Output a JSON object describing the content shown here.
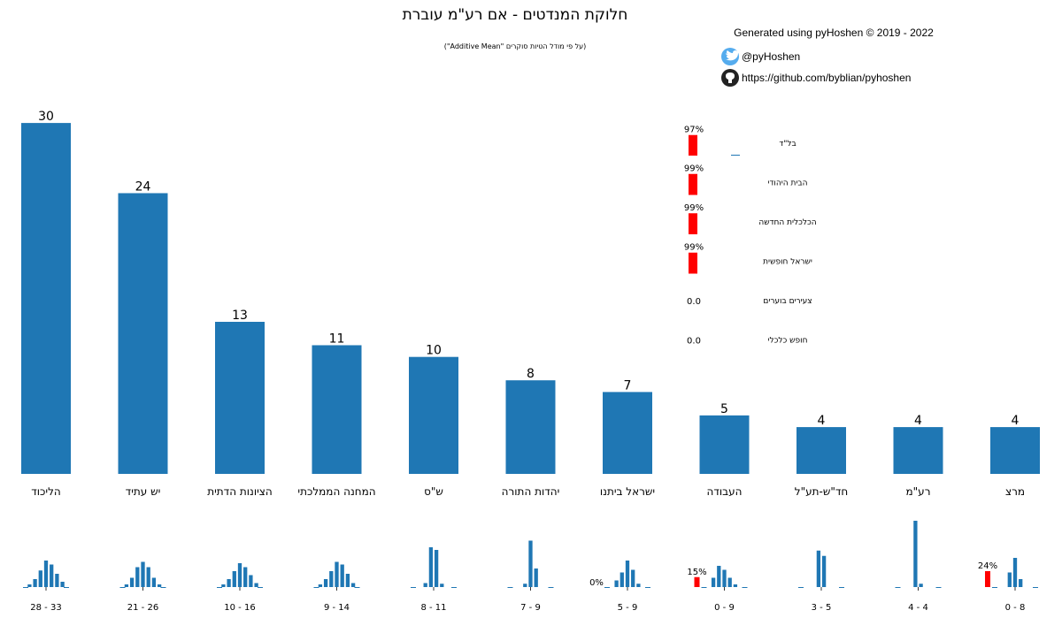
{
  "chart_data": {
    "type": "bar",
    "title": "חלוקת המנדטים - אם רע\"מ עוברת",
    "subtitle": "(על פי מודל הטיות סוקרים \"Additive Mean\")",
    "credit": {
      "generated": "Generated using pyHoshen © 2019 - 2022",
      "twitter": "@pyHoshen",
      "github": "https://github.com/byblian/pyhoshen"
    },
    "colors": {
      "bar": "#1f77b4",
      "threshold": "#ff0000"
    },
    "categories": [
      "הליכוד",
      "יש עתיד",
      "הציונות הדתית",
      "המחנה הממלכתי",
      "ש\"ס",
      "יהדות התורה",
      "ישראל ביתנו",
      "העבודה",
      "חד\"ש-תע\"ל",
      "רע\"מ",
      "מרצ"
    ],
    "values": [
      30,
      24,
      13,
      11,
      10,
      8,
      7,
      5,
      4,
      4,
      4
    ],
    "ranges": [
      "28 - 33",
      "21 - 26",
      "10 - 16",
      "9 - 14",
      "8 - 11",
      "7 - 9",
      "5 - 9",
      "0 - 9",
      "3 - 5",
      "4 - 4",
      "0 - 8"
    ],
    "below_threshold_pct": [
      "",
      "",
      "",
      "",
      "",
      "",
      "0%",
      "15%",
      "",
      "",
      "24%"
    ],
    "below_threshold_prob": [
      0,
      0,
      0,
      0,
      0,
      0,
      0,
      0.15,
      0,
      0,
      0.24
    ],
    "distributions": [
      [
        0.04,
        0.12,
        0.25,
        0.4,
        0.34,
        0.2,
        0.08
      ],
      [
        0.04,
        0.14,
        0.3,
        0.38,
        0.3,
        0.14,
        0.04
      ],
      [
        0.04,
        0.12,
        0.24,
        0.36,
        0.3,
        0.18,
        0.06
      ],
      [
        0.04,
        0.12,
        0.24,
        0.38,
        0.34,
        0.2,
        0.06
      ],
      [
        0.06,
        0.6,
        0.56,
        0.05
      ],
      [
        0.05,
        0.7,
        0.28
      ],
      [
        0.1,
        0.22,
        0.4,
        0.26,
        0.05
      ],
      [
        0.14,
        0.32,
        0.26,
        0.14,
        0.04
      ],
      [
        0.55,
        0.47
      ],
      [
        1.0,
        0.05
      ],
      [
        0.22,
        0.44,
        0.12
      ]
    ],
    "small_parties": [
      {
        "name": "בל\"ד",
        "pct": "97%",
        "prob_below": 0.97,
        "dash": true
      },
      {
        "name": "הבית היהודי",
        "pct": "99%",
        "prob_below": 0.99
      },
      {
        "name": "הכלכלית החדשה",
        "pct": "99%",
        "prob_below": 0.99
      },
      {
        "name": "ישראל חופשית",
        "pct": "99%",
        "prob_below": 0.99
      },
      {
        "name": "צעירים בוערים",
        "pct": "0.0",
        "prob_below": 0
      },
      {
        "name": "חופש כלכלי",
        "pct": "0.0",
        "prob_below": 0
      }
    ],
    "ylim": [
      0,
      30
    ]
  }
}
